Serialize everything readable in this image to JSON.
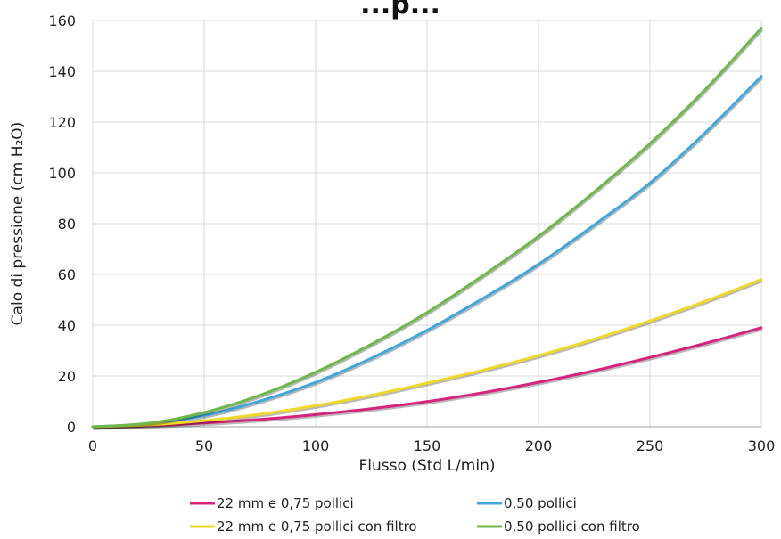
{
  "chart_data": {
    "type": "line",
    "title": "...p...",
    "xlabel": "Flusso (Std L/min)",
    "ylabel": "Calo di pressione (cm H₂O)",
    "xlim": [
      0,
      300
    ],
    "ylim": [
      0,
      160
    ],
    "x_ticks": [
      0,
      50,
      100,
      150,
      200,
      250,
      300
    ],
    "y_ticks": [
      0,
      20,
      40,
      60,
      80,
      100,
      120,
      140,
      160
    ],
    "grid": "vertical",
    "legend_position": "bottom",
    "x": [
      0,
      25,
      50,
      75,
      100,
      125,
      150,
      175,
      200,
      225,
      250,
      275,
      300
    ],
    "series": [
      {
        "name": "22 mm e 0,75 pollici",
        "color": "#d6237e",
        "values": [
          0,
          0.4,
          1.5,
          2.9,
          4.8,
          7.1,
          9.9,
          13.4,
          17.5,
          22.1,
          27.3,
          32.9,
          39
        ]
      },
      {
        "name": "0,50 pollici",
        "color": "#3fa7dc",
        "values": [
          0,
          1.2,
          4.4,
          10.1,
          17.5,
          27,
          38,
          50.5,
          64,
          79.5,
          96,
          116,
          138
        ]
      },
      {
        "name": "22 mm e 0,75 pollici con filtro",
        "color": "#f0d728",
        "values": [
          0,
          0.7,
          2.4,
          4.9,
          8.3,
          12.4,
          17.2,
          22.3,
          28,
          34.5,
          41.7,
          49.5,
          58
        ]
      },
      {
        "name": "0,50 pollici con filtro",
        "color": "#6cb84a",
        "values": [
          0,
          1.4,
          5.6,
          12.4,
          21.5,
          32.5,
          45,
          59.5,
          75,
          92.5,
          111.5,
          133,
          157
        ]
      }
    ]
  }
}
